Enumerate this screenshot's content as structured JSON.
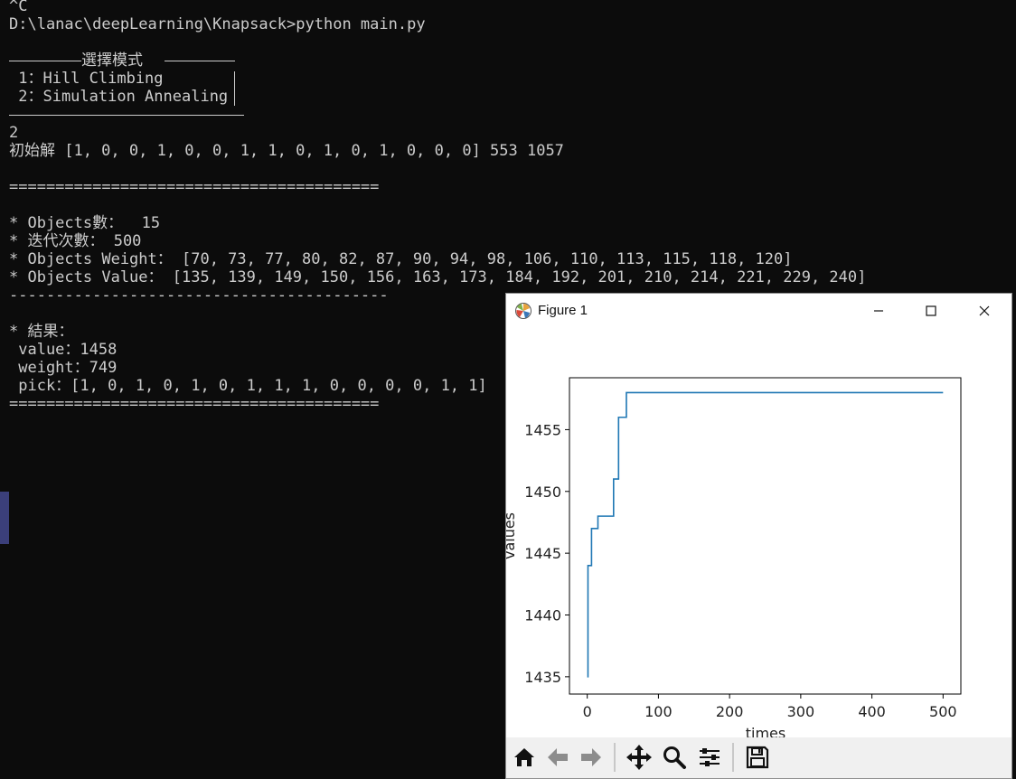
{
  "terminal": {
    "lines": [
      "^C",
      "D:\\lanac\\deepLearning\\Knapsack>python main.py",
      "選擇模式",
      " 1：Hill Climbing",
      " 2：Simulation Annealing",
      "2",
      "初始解 [1, 0, 0, 1, 0, 0, 1, 1, 0, 1, 0, 1, 0, 0, 0] 553 1057",
      "========================================",
      "* Objects數：  15",
      "* 迭代次數： 500",
      "* Objects Weight： [70, 73, 77, 80, 82, 87, 90, 94, 98, 106, 110, 113, 115, 118, 120]",
      "* Objects Value： [135, 139, 149, 150, 156, 163, 173, 184, 192, 201, 210, 214, 221, 229, 240]",
      "------------------------------------------",
      "* 結果：",
      " value：1458",
      " weight：749",
      " pick：[1, 0, 1, 0, 1, 0, 1, 1, 1, 0, 0, 0, 0, 1, 1]",
      "========================================"
    ]
  },
  "figure": {
    "title": "Figure 1",
    "icons": {
      "app": "matplotlib-icon",
      "minimize": "minimize-icon",
      "maximize": "maximize-icon",
      "close": "close-icon"
    },
    "toolbar": [
      "home-icon",
      "back-arrow-icon",
      "forward-arrow-icon",
      "pan-icon",
      "zoom-icon",
      "configure-subplots-icon",
      "save-icon"
    ]
  },
  "chart_data": {
    "type": "line",
    "xlabel": "times",
    "ylabel": "values",
    "xlim": [
      -25,
      525
    ],
    "ylim": [
      1433.6,
      1459.2
    ],
    "xticks": [
      0,
      100,
      200,
      300,
      400,
      500
    ],
    "yticks": [
      1435,
      1440,
      1445,
      1450,
      1455
    ],
    "grid": false,
    "series": [
      {
        "color": "#1f77b4",
        "x": [
          0,
          1,
          1,
          6,
          6,
          15,
          15,
          23,
          23,
          37,
          37,
          43,
          43,
          44,
          44,
          55,
          55,
          500
        ],
        "y": [
          1435,
          1435,
          1444,
          1444,
          1447,
          1447,
          1448,
          1448,
          1448,
          1448,
          1451,
          1451,
          1451,
          1451,
          1456,
          1456,
          1458,
          1458
        ]
      }
    ]
  }
}
